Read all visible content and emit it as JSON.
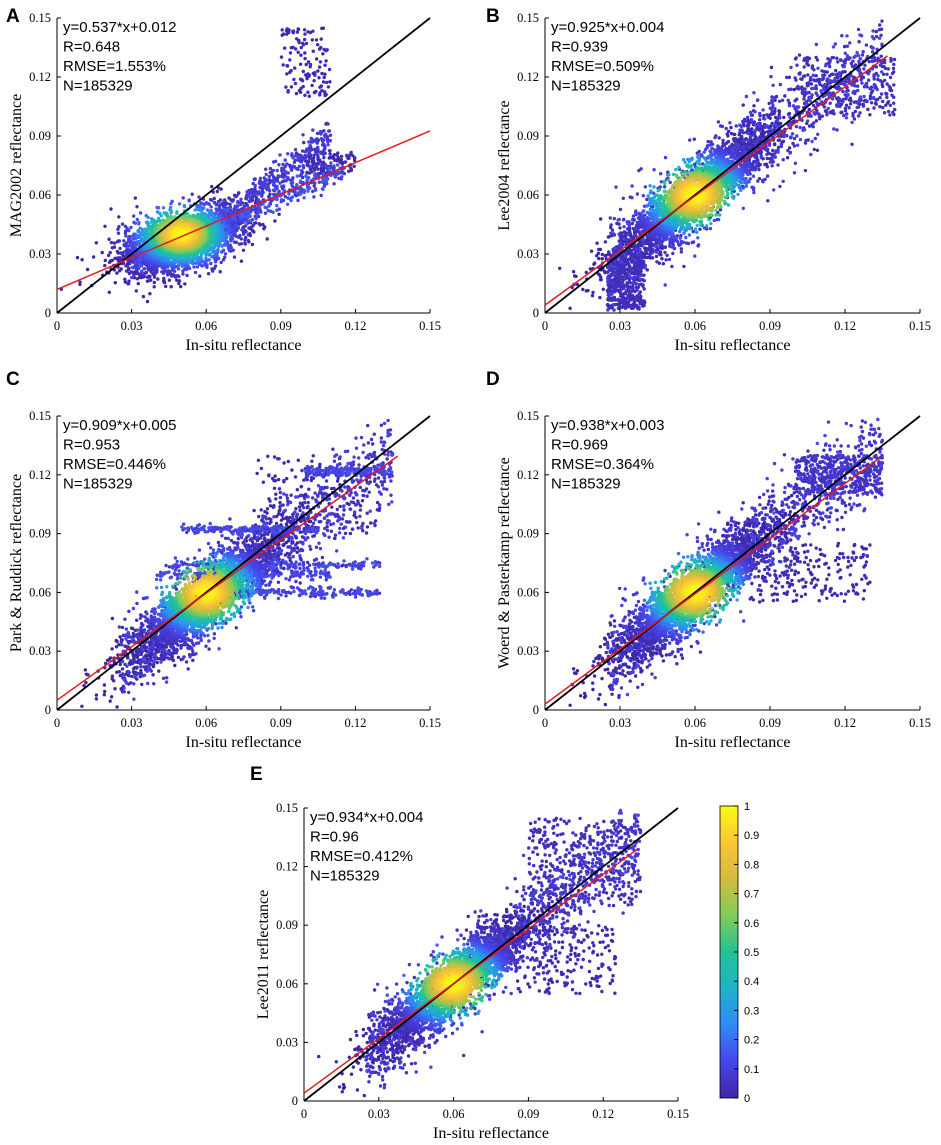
{
  "figure": {
    "xlabel": "In-situ reflectance",
    "colorbar": {
      "min": 0,
      "max": 1,
      "ticks": [
        "0",
        "0.1",
        "0.2",
        "0.3",
        "0.4",
        "0.5",
        "0.6",
        "0.7",
        "0.8",
        "0.9",
        "1"
      ],
      "colormap": [
        "#3e26a8",
        "#4746eb",
        "#2f8af5",
        "#1fb3c9",
        "#22c295",
        "#81cc59",
        "#d3bc3d",
        "#fbc535",
        "#f9fb15"
      ]
    }
  },
  "chart_data": [
    {
      "panel": "A",
      "type": "scatter",
      "ylabel": "MAG2002 reflectance",
      "xlabel": "In-situ reflectance",
      "xlim": [
        0,
        0.15
      ],
      "ylim": [
        0,
        0.15
      ],
      "xticks": [
        "0",
        "0.03",
        "0.06",
        "0.09",
        "0.12",
        "0.15"
      ],
      "yticks": [
        "0",
        "0.03",
        "0.06",
        "0.09",
        "0.12",
        "0.15"
      ],
      "annotations": [
        "y=0.537*x+0.012",
        "R=0.648",
        "RMSE=1.553%",
        "N=185329"
      ],
      "fit": {
        "slope": 0.537,
        "intercept": 0.012,
        "color": "#e41a1c"
      },
      "one_to_one": {
        "color": "#000000"
      },
      "density_color": "log-scaled point density (0–1)"
    },
    {
      "panel": "B",
      "type": "scatter",
      "ylabel": "Lee2004 reflectance",
      "xlabel": "In-situ reflectance",
      "xlim": [
        0,
        0.15
      ],
      "ylim": [
        0,
        0.15
      ],
      "xticks": [
        "0",
        "0.03",
        "0.06",
        "0.09",
        "0.12",
        "0.15"
      ],
      "yticks": [
        "0",
        "0.03",
        "0.06",
        "0.09",
        "0.12",
        "0.15"
      ],
      "annotations": [
        "y=0.925*x+0.004",
        "R=0.939",
        "RMSE=0.509%",
        "N=185329"
      ],
      "fit": {
        "slope": 0.925,
        "intercept": 0.004,
        "color": "#e41a1c"
      },
      "one_to_one": {
        "color": "#000000"
      }
    },
    {
      "panel": "C",
      "type": "scatter",
      "ylabel": "Park & Ruddick reflectance",
      "xlabel": "In-situ reflectance",
      "xlim": [
        0,
        0.15
      ],
      "ylim": [
        0,
        0.15
      ],
      "xticks": [
        "0",
        "0.03",
        "0.06",
        "0.09",
        "0.12",
        "0.15"
      ],
      "yticks": [
        "0",
        "0.03",
        "0.06",
        "0.09",
        "0.12",
        "0.15"
      ],
      "annotations": [
        "y=0.909*x+0.005",
        "R=0.953",
        "RMSE=0.446%",
        "N=185329"
      ],
      "fit": {
        "slope": 0.909,
        "intercept": 0.005,
        "color": "#e41a1c"
      },
      "one_to_one": {
        "color": "#000000"
      }
    },
    {
      "panel": "D",
      "type": "scatter",
      "ylabel": "Woerd & Pasterkamp reflectance",
      "xlabel": "In-situ reflectance",
      "xlim": [
        0,
        0.15
      ],
      "ylim": [
        0,
        0.15
      ],
      "xticks": [
        "0",
        "0.03",
        "0.06",
        "0.09",
        "0.12",
        "0.15"
      ],
      "yticks": [
        "0",
        "0.03",
        "0.06",
        "0.09",
        "0.12",
        "0.15"
      ],
      "annotations": [
        "y=0.938*x+0.003",
        "R=0.969",
        "RMSE=0.364%",
        "N=185329"
      ],
      "fit": {
        "slope": 0.938,
        "intercept": 0.003,
        "color": "#e41a1c"
      },
      "one_to_one": {
        "color": "#000000"
      }
    },
    {
      "panel": "E",
      "type": "scatter",
      "ylabel": "Lee2011 reflectance",
      "xlabel": "In-situ reflectance",
      "xlim": [
        0,
        0.15
      ],
      "ylim": [
        0,
        0.15
      ],
      "xticks": [
        "0",
        "0.03",
        "0.06",
        "0.09",
        "0.12",
        "0.15"
      ],
      "yticks": [
        "0",
        "0.03",
        "0.06",
        "0.09",
        "0.12",
        "0.15"
      ],
      "annotations": [
        "y=0.934*x+0.004",
        "R=0.96",
        "RMSE=0.412%",
        "N=185329"
      ],
      "fit": {
        "slope": 0.934,
        "intercept": 0.004,
        "color": "#e41a1c"
      },
      "one_to_one": {
        "color": "#000000"
      }
    }
  ]
}
